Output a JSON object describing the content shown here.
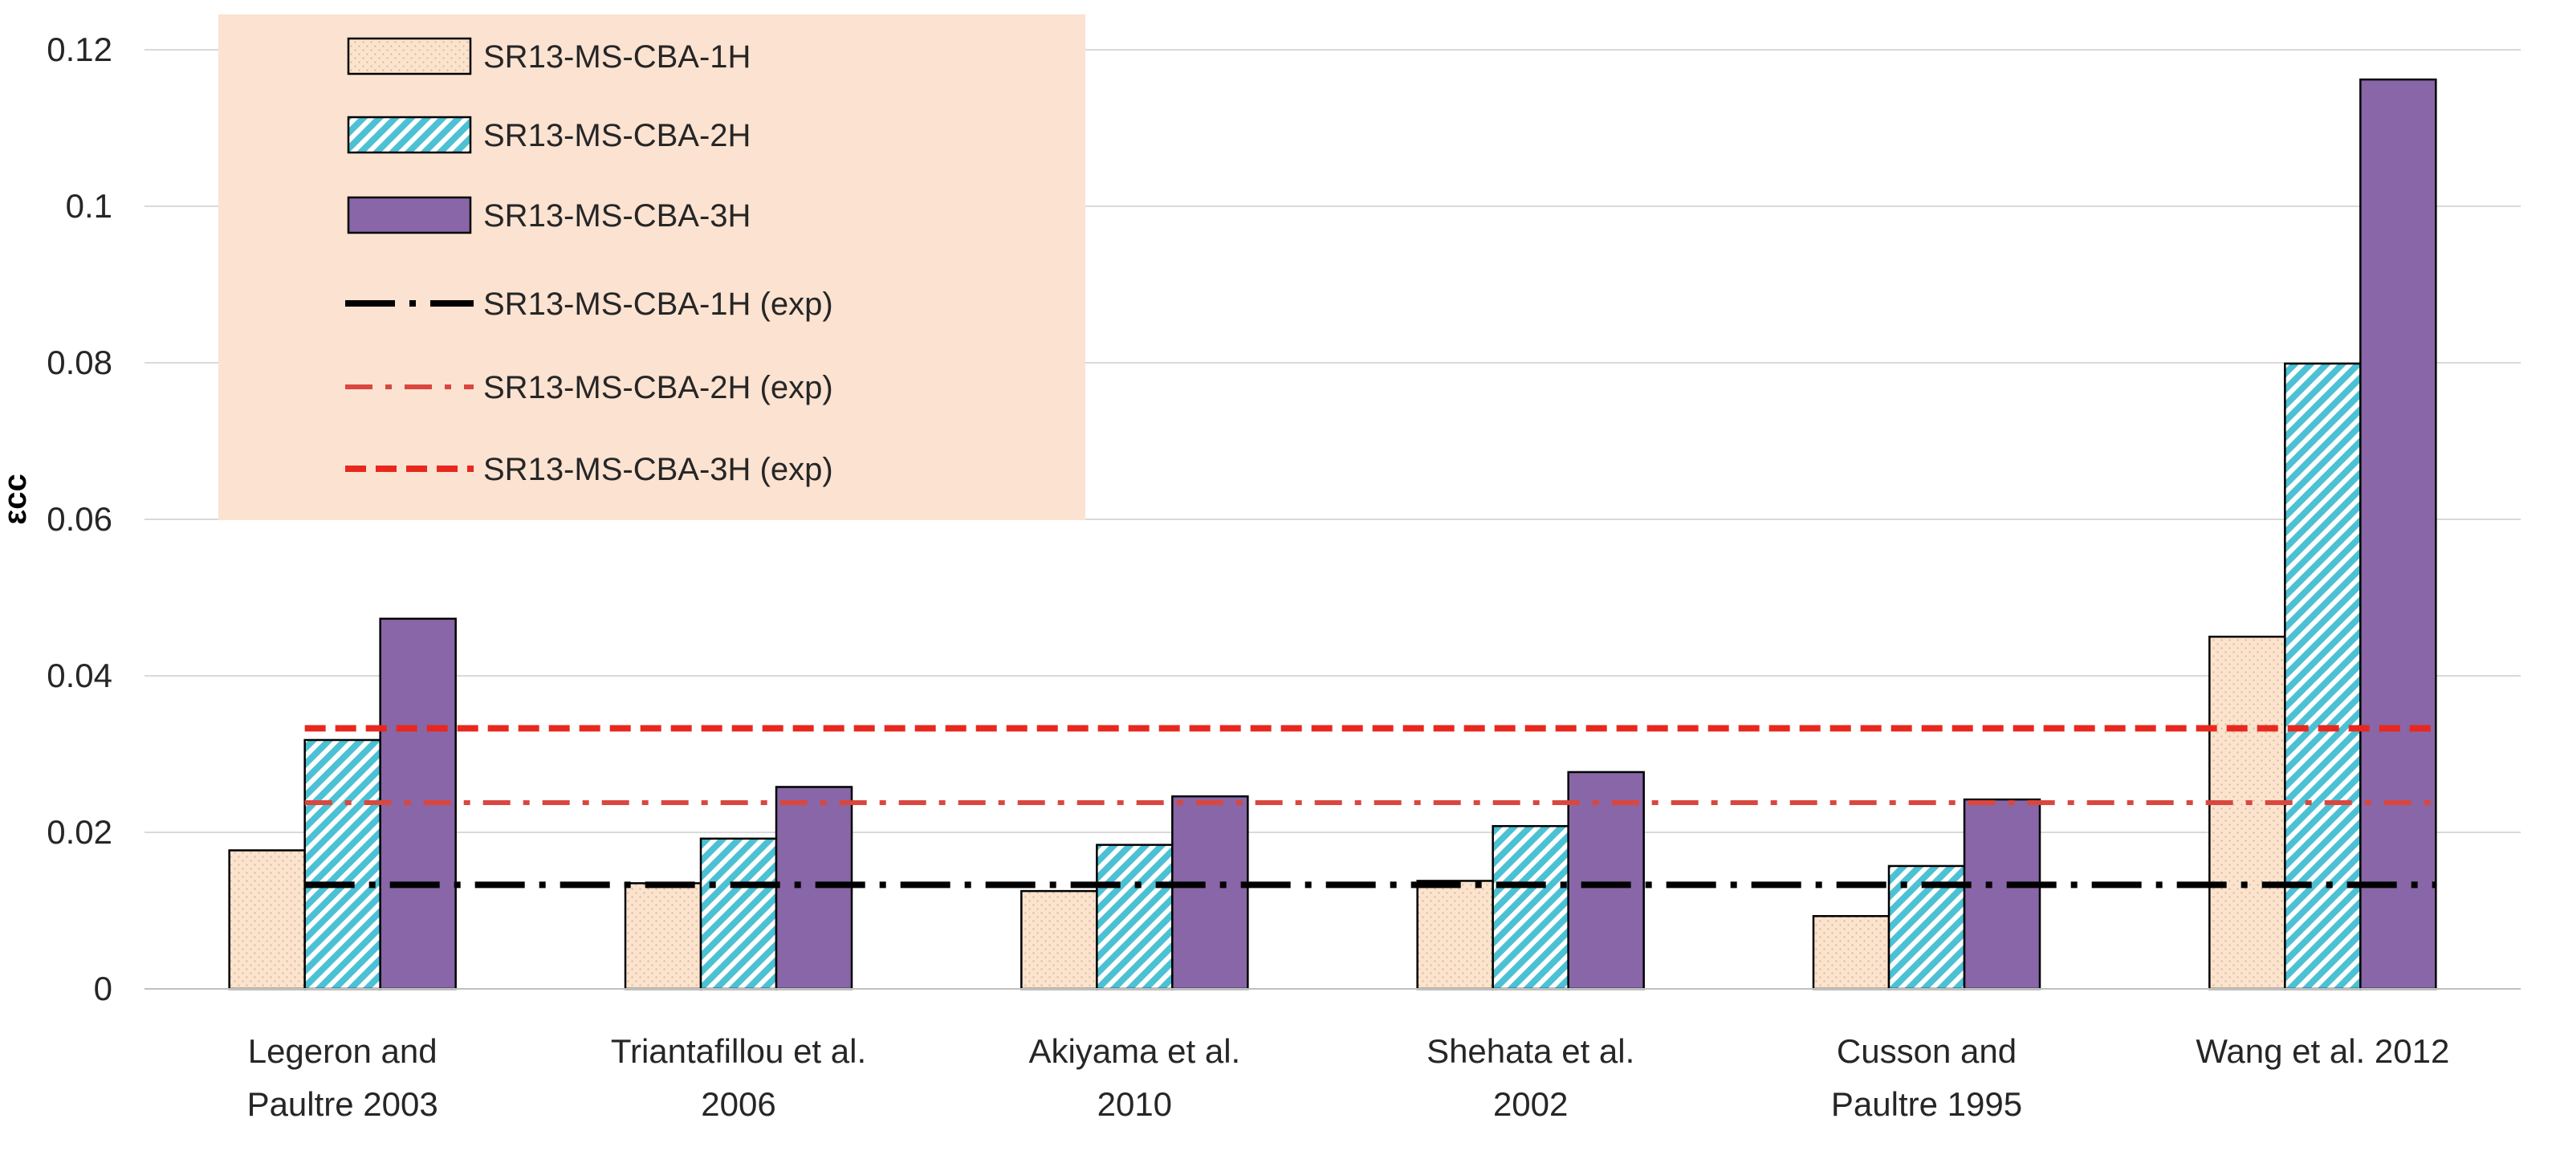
{
  "chart_data": {
    "type": "bar",
    "title": "",
    "xlabel": "",
    "ylabel": "εcc",
    "ylim": [
      0,
      0.12
    ],
    "yticks": [
      0,
      0.02,
      0.04,
      0.06,
      0.08,
      0.1,
      0.12
    ],
    "ytick_labels": [
      "0",
      "0.02",
      "0.04",
      "0.06",
      "0.08",
      "0.1",
      "0.12"
    ],
    "grid": true,
    "legend_position": "top-left",
    "categories": [
      [
        "Legeron and",
        "Paultre 2003"
      ],
      [
        "Triantafillou et al.",
        "2006"
      ],
      [
        "Akiyama et al.",
        "2010"
      ],
      [
        "Shehata et al.",
        "2002"
      ],
      [
        "Cusson and",
        "Paultre 1995"
      ],
      [
        "Wang et al. 2012"
      ]
    ],
    "series": [
      {
        "name": "SR13-MS-CBA-1H",
        "pattern": "dots",
        "color": "#fbe3cd",
        "values": [
          0.0177,
          0.0135,
          0.0125,
          0.0138,
          0.0093,
          0.045
        ]
      },
      {
        "name": "SR13-MS-CBA-2H",
        "pattern": "hatch",
        "color": "#4cc1d4",
        "values": [
          0.0318,
          0.0192,
          0.0184,
          0.0208,
          0.0157,
          0.0799
        ]
      },
      {
        "name": "SR13-MS-CBA-3H",
        "pattern": "solid",
        "color": "#8966a7",
        "values": [
          0.0473,
          0.0258,
          0.0246,
          0.0277,
          0.0242,
          0.1162
        ]
      }
    ],
    "reference_lines": [
      {
        "name": "SR13-MS-CBA-1H (exp)",
        "value": 0.0133,
        "color": "#000000",
        "style": "long-dash-dot"
      },
      {
        "name": "SR13-MS-CBA-2H (exp)",
        "value": 0.0238,
        "color": "#d9473f",
        "style": "dash-dot"
      },
      {
        "name": "SR13-MS-CBA-3H (exp)",
        "value": 0.0333,
        "color": "#e8281e",
        "style": "dash"
      }
    ],
    "legend_background": "#fbe2d1"
  }
}
